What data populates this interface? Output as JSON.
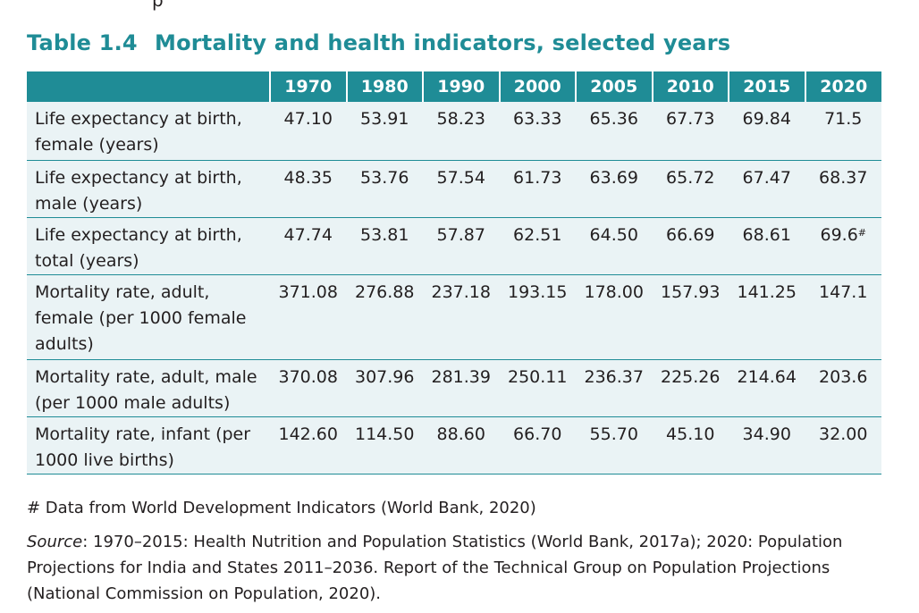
{
  "document": {
    "top_fragment": "p",
    "table_number": "Table 1.4",
    "table_title": "Mortality and health indicators, selected years",
    "columns": [
      "",
      "1970",
      "1980",
      "1990",
      "2000",
      "2005",
      "2010",
      "2015",
      "2020"
    ],
    "rows": [
      {
        "label_line1": "Life expectancy at birth,",
        "label_line2": "female (years)",
        "label_line3": "",
        "values": [
          "47.10",
          "53.91",
          "58.23",
          "63.33",
          "65.36",
          "67.73",
          "69.84",
          "71.5"
        ],
        "last_marker": ""
      },
      {
        "label_line1": "Life expectancy at birth,",
        "label_line2": "male (years)",
        "label_line3": "",
        "values": [
          "48.35",
          "53.76",
          "57.54",
          "61.73",
          "63.69",
          "65.72",
          "67.47",
          "68.37"
        ],
        "last_marker": ""
      },
      {
        "label_line1": "Life expectancy at birth,",
        "label_line2": "total (years)",
        "label_line3": "",
        "values": [
          "47.74",
          "53.81",
          "57.87",
          "62.51",
          "64.50",
          "66.69",
          "68.61",
          "69.6"
        ],
        "last_marker": "#"
      },
      {
        "label_line1": "Mortality rate, adult,",
        "label_line2": "female (per 1000 female",
        "label_line3": "adults)",
        "values": [
          "371.08",
          "276.88",
          "237.18",
          "193.15",
          "178.00",
          "157.93",
          "141.25",
          "147.1"
        ],
        "last_marker": ""
      },
      {
        "label_line1": "Mortality rate, adult, male",
        "label_line2": "(per 1000 male adults)",
        "label_line3": "",
        "values": [
          "370.08",
          "307.96",
          "281.39",
          "250.11",
          "236.37",
          "225.26",
          "214.64",
          "203.6"
        ],
        "last_marker": ""
      },
      {
        "label_line1": "Mortality rate, infant (per",
        "label_line2": "1000 live births)",
        "label_line3": "",
        "values": [
          "142.60",
          "114.50",
          "88.60",
          "66.70",
          "55.70",
          "45.10",
          "34.90",
          "32.00"
        ],
        "last_marker": ""
      }
    ],
    "footnote": "# Data from World Development Indicators (World Bank, 2020)",
    "source_label": "Source",
    "source_text": ": 1970–2015: Health Nutrition and Population Statistics (World Bank, 2017a); 2020: Population Projections for India and States 2011–2036. Report of the Technical Group on Population Projections (National Commission on Population, 2020).",
    "colors": {
      "accent": "#1f8c96",
      "row_background": "#eaf3f5",
      "text": "#231f20"
    }
  }
}
